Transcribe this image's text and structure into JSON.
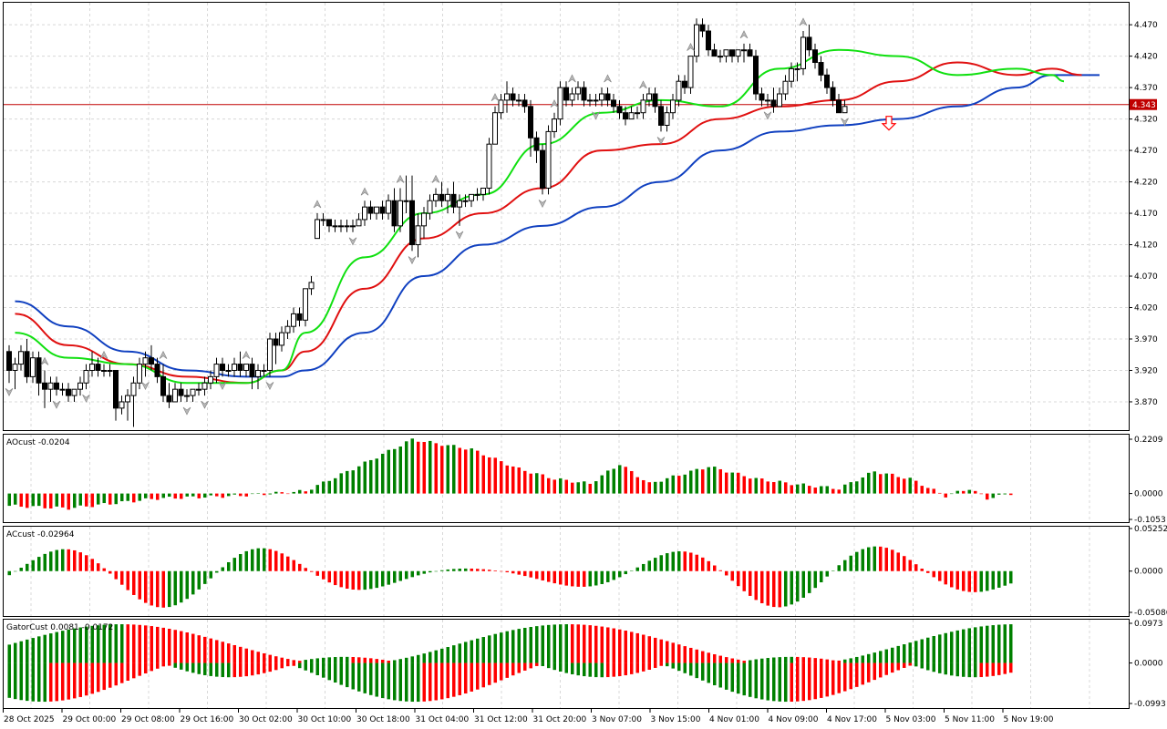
{
  "chart_data": {
    "type": "candlestick",
    "price_panel": {
      "y_ticks": [
        "4.470",
        "4.420",
        "4.370",
        "4.320",
        "4.270",
        "4.220",
        "4.170",
        "4.120",
        "4.070",
        "4.020",
        "3.970",
        "3.920",
        "3.870"
      ],
      "ylim": [
        3.825,
        4.505
      ],
      "current_price": "4.343",
      "candles": [
        [
          3.95,
          3.96,
          3.9,
          3.92
        ],
        [
          3.92,
          3.94,
          3.89,
          3.93
        ],
        [
          3.93,
          3.96,
          3.92,
          3.95
        ],
        [
          3.95,
          3.97,
          3.9,
          3.91
        ],
        [
          3.91,
          3.95,
          3.9,
          3.94
        ],
        [
          3.94,
          3.95,
          3.88,
          3.9
        ],
        [
          3.9,
          3.92,
          3.86,
          3.89
        ],
        [
          3.89,
          3.91,
          3.87,
          3.9
        ],
        [
          3.9,
          3.91,
          3.88,
          3.89
        ],
        [
          3.89,
          3.9,
          3.88,
          3.89
        ],
        [
          3.89,
          3.9,
          3.87,
          3.88
        ],
        [
          3.88,
          3.89,
          3.87,
          3.89
        ],
        [
          3.89,
          3.91,
          3.88,
          3.9
        ],
        [
          3.9,
          3.93,
          3.89,
          3.92
        ],
        [
          3.92,
          3.95,
          3.91,
          3.93
        ],
        [
          3.93,
          3.94,
          3.91,
          3.92
        ],
        [
          3.92,
          3.93,
          3.91,
          3.92
        ],
        [
          3.92,
          3.93,
          3.91,
          3.92
        ],
        [
          3.92,
          3.92,
          3.84,
          3.86
        ],
        [
          3.86,
          3.88,
          3.85,
          3.87
        ],
        [
          3.87,
          3.89,
          3.84,
          3.88
        ],
        [
          3.88,
          3.91,
          3.83,
          3.9
        ],
        [
          3.9,
          3.94,
          3.89,
          3.93
        ],
        [
          3.93,
          3.95,
          3.91,
          3.94
        ],
        [
          3.94,
          3.96,
          3.92,
          3.93
        ],
        [
          3.93,
          3.94,
          3.9,
          3.91
        ],
        [
          3.91,
          3.93,
          3.87,
          3.88
        ],
        [
          3.88,
          3.9,
          3.86,
          3.87
        ],
        [
          3.87,
          3.9,
          3.87,
          3.89
        ],
        [
          3.89,
          3.9,
          3.87,
          3.88
        ],
        [
          3.88,
          3.89,
          3.87,
          3.88
        ],
        [
          3.88,
          3.89,
          3.87,
          3.89
        ],
        [
          3.89,
          3.9,
          3.88,
          3.89
        ],
        [
          3.89,
          3.91,
          3.88,
          3.9
        ],
        [
          3.9,
          3.92,
          3.89,
          3.91
        ],
        [
          3.91,
          3.94,
          3.9,
          3.93
        ],
        [
          3.93,
          3.94,
          3.91,
          3.92
        ],
        [
          3.92,
          3.93,
          3.91,
          3.92
        ],
        [
          3.92,
          3.94,
          3.91,
          3.93
        ],
        [
          3.93,
          3.95,
          3.91,
          3.92
        ],
        [
          3.92,
          3.93,
          3.91,
          3.93
        ],
        [
          3.93,
          3.94,
          3.89,
          3.91
        ],
        [
          3.91,
          3.93,
          3.89,
          3.92
        ],
        [
          3.92,
          3.93,
          3.91,
          3.92
        ],
        [
          3.92,
          3.98,
          3.91,
          3.97
        ],
        [
          3.97,
          3.98,
          3.93,
          3.96
        ],
        [
          3.96,
          3.99,
          3.95,
          3.98
        ],
        [
          3.98,
          4.0,
          3.97,
          3.99
        ],
        [
          3.99,
          4.02,
          3.98,
          4.01
        ],
        [
          4.01,
          4.02,
          3.99,
          4.0
        ],
        [
          4.0,
          4.05,
          3.99,
          4.05
        ],
        [
          4.05,
          4.07,
          4.04,
          4.06
        ],
        [
          4.13,
          4.17,
          4.13,
          4.16
        ],
        [
          4.16,
          4.17,
          4.15,
          4.16
        ],
        [
          4.16,
          4.16,
          4.14,
          4.15
        ],
        [
          4.15,
          4.16,
          4.14,
          4.15
        ],
        [
          4.15,
          4.16,
          4.14,
          4.15
        ],
        [
          4.15,
          4.16,
          4.14,
          4.15
        ],
        [
          4.15,
          4.16,
          4.14,
          4.15
        ],
        [
          4.15,
          4.17,
          4.15,
          4.16
        ],
        [
          4.16,
          4.19,
          4.15,
          4.18
        ],
        [
          4.18,
          4.19,
          4.16,
          4.17
        ],
        [
          4.17,
          4.18,
          4.16,
          4.18
        ],
        [
          4.18,
          4.19,
          4.16,
          4.17
        ],
        [
          4.17,
          4.2,
          4.16,
          4.19
        ],
        [
          4.19,
          4.21,
          4.14,
          4.15
        ],
        [
          4.15,
          4.21,
          4.14,
          4.19
        ],
        [
          4.19,
          4.23,
          4.17,
          4.19
        ],
        [
          4.19,
          4.23,
          4.11,
          4.12
        ],
        [
          4.12,
          4.17,
          4.1,
          4.15
        ],
        [
          4.15,
          4.18,
          4.13,
          4.17
        ],
        [
          4.17,
          4.2,
          4.16,
          4.19
        ],
        [
          4.19,
          4.21,
          4.18,
          4.2
        ],
        [
          4.2,
          4.22,
          4.18,
          4.19
        ],
        [
          4.19,
          4.21,
          4.17,
          4.2
        ],
        [
          4.2,
          4.22,
          4.17,
          4.18
        ],
        [
          4.18,
          4.2,
          4.15,
          4.19
        ],
        [
          4.19,
          4.2,
          4.18,
          4.19
        ],
        [
          4.19,
          4.2,
          4.18,
          4.2
        ],
        [
          4.2,
          4.21,
          4.19,
          4.2
        ],
        [
          4.2,
          4.21,
          4.19,
          4.21
        ],
        [
          4.21,
          4.29,
          4.2,
          4.28
        ],
        [
          4.28,
          4.34,
          4.28,
          4.33
        ],
        [
          4.33,
          4.36,
          4.32,
          4.35
        ],
        [
          4.35,
          4.38,
          4.33,
          4.36
        ],
        [
          4.36,
          4.37,
          4.34,
          4.35
        ],
        [
          4.35,
          4.36,
          4.34,
          4.35
        ],
        [
          4.35,
          4.36,
          4.33,
          4.34
        ],
        [
          4.34,
          4.35,
          4.26,
          4.29
        ],
        [
          4.29,
          4.3,
          4.25,
          4.27
        ],
        [
          4.27,
          4.28,
          4.2,
          4.21
        ],
        [
          4.21,
          4.31,
          4.2,
          4.3
        ],
        [
          4.3,
          4.33,
          4.29,
          4.32
        ],
        [
          4.32,
          4.38,
          4.31,
          4.37
        ],
        [
          4.37,
          4.38,
          4.34,
          4.35
        ],
        [
          4.35,
          4.37,
          4.34,
          4.36
        ],
        [
          4.36,
          4.38,
          4.35,
          4.37
        ],
        [
          4.37,
          4.38,
          4.34,
          4.35
        ],
        [
          4.35,
          4.36,
          4.34,
          4.35
        ],
        [
          4.35,
          4.36,
          4.34,
          4.35
        ],
        [
          4.35,
          4.37,
          4.34,
          4.36
        ],
        [
          4.36,
          4.37,
          4.34,
          4.35
        ],
        [
          4.35,
          4.36,
          4.33,
          4.34
        ],
        [
          4.34,
          4.35,
          4.32,
          4.33
        ],
        [
          4.33,
          4.34,
          4.31,
          4.32
        ],
        [
          4.32,
          4.34,
          4.32,
          4.33
        ],
        [
          4.33,
          4.34,
          4.32,
          4.33
        ],
        [
          4.33,
          4.36,
          4.32,
          4.35
        ],
        [
          4.35,
          4.37,
          4.34,
          4.36
        ],
        [
          4.36,
          4.37,
          4.33,
          4.34
        ],
        [
          4.34,
          4.35,
          4.3,
          4.31
        ],
        [
          4.31,
          4.34,
          4.3,
          4.33
        ],
        [
          4.33,
          4.36,
          4.32,
          4.35
        ],
        [
          4.35,
          4.39,
          4.34,
          4.38
        ],
        [
          4.38,
          4.39,
          4.36,
          4.37
        ],
        [
          4.37,
          4.42,
          4.36,
          4.42
        ],
        [
          4.42,
          4.48,
          4.41,
          4.47
        ],
        [
          4.47,
          4.48,
          4.45,
          4.46
        ],
        [
          4.46,
          4.47,
          4.42,
          4.43
        ],
        [
          4.43,
          4.44,
          4.42,
          4.42
        ],
        [
          4.42,
          4.43,
          4.41,
          4.42
        ],
        [
          4.42,
          4.43,
          4.41,
          4.43
        ],
        [
          4.43,
          4.43,
          4.41,
          4.42
        ],
        [
          4.42,
          4.43,
          4.41,
          4.43
        ],
        [
          4.43,
          4.44,
          4.41,
          4.43
        ],
        [
          4.43,
          4.44,
          4.42,
          4.42
        ],
        [
          4.42,
          4.43,
          4.35,
          4.36
        ],
        [
          4.36,
          4.37,
          4.34,
          4.35
        ],
        [
          4.35,
          4.36,
          4.34,
          4.35
        ],
        [
          4.35,
          4.37,
          4.33,
          4.34
        ],
        [
          4.34,
          4.37,
          4.34,
          4.36
        ],
        [
          4.36,
          4.39,
          4.35,
          4.38
        ],
        [
          4.38,
          4.41,
          4.37,
          4.4
        ],
        [
          4.4,
          4.41,
          4.38,
          4.4
        ],
        [
          4.4,
          4.46,
          4.39,
          4.45
        ],
        [
          4.45,
          4.47,
          4.42,
          4.43
        ],
        [
          4.43,
          4.44,
          4.4,
          4.41
        ],
        [
          4.41,
          4.42,
          4.38,
          4.39
        ],
        [
          4.39,
          4.4,
          4.36,
          4.37
        ],
        [
          4.37,
          4.38,
          4.34,
          4.35
        ],
        [
          4.35,
          4.36,
          4.33,
          4.33
        ],
        [
          4.33,
          4.35,
          4.33,
          4.34
        ]
      ],
      "alligator": {
        "jaw_blue": [
          [
            1,
            4.03
          ],
          [
            10,
            3.99
          ],
          [
            20,
            3.95
          ],
          [
            30,
            3.92
          ],
          [
            40,
            3.91
          ],
          [
            46,
            3.91
          ],
          [
            50,
            3.92
          ],
          [
            60,
            3.98
          ],
          [
            70,
            4.07
          ],
          [
            80,
            4.12
          ],
          [
            90,
            4.15
          ],
          [
            100,
            4.18
          ],
          [
            110,
            4.22
          ],
          [
            120,
            4.27
          ],
          [
            130,
            4.3
          ],
          [
            140,
            4.31
          ],
          [
            150,
            4.32
          ],
          [
            160,
            4.34
          ],
          [
            170,
            4.37
          ],
          [
            176,
            4.39
          ],
          [
            184,
            4.39
          ]
        ],
        "teeth_red": [
          [
            1,
            4.01
          ],
          [
            10,
            3.96
          ],
          [
            20,
            3.93
          ],
          [
            30,
            3.91
          ],
          [
            40,
            3.9
          ],
          [
            46,
            3.92
          ],
          [
            50,
            3.95
          ],
          [
            60,
            4.05
          ],
          [
            70,
            4.13
          ],
          [
            80,
            4.17
          ],
          [
            90,
            4.21
          ],
          [
            100,
            4.27
          ],
          [
            110,
            4.28
          ],
          [
            120,
            4.32
          ],
          [
            130,
            4.34
          ],
          [
            140,
            4.35
          ],
          [
            150,
            4.38
          ],
          [
            160,
            4.41
          ],
          [
            170,
            4.39
          ],
          [
            176,
            4.4
          ],
          [
            181,
            4.39
          ]
        ],
        "lips_green": [
          [
            1,
            3.98
          ],
          [
            10,
            3.94
          ],
          [
            20,
            3.93
          ],
          [
            30,
            3.9
          ],
          [
            40,
            3.9
          ],
          [
            46,
            3.92
          ],
          [
            50,
            3.98
          ],
          [
            60,
            4.1
          ],
          [
            70,
            4.17
          ],
          [
            80,
            4.2
          ],
          [
            90,
            4.28
          ],
          [
            100,
            4.33
          ],
          [
            110,
            4.35
          ],
          [
            120,
            4.34
          ],
          [
            130,
            4.4
          ],
          [
            140,
            4.43
          ],
          [
            150,
            4.42
          ],
          [
            160,
            4.39
          ],
          [
            170,
            4.4
          ],
          [
            176,
            4.39
          ],
          [
            178,
            4.38
          ]
        ]
      },
      "fractals_up": [
        6,
        16,
        26,
        40,
        52,
        60,
        66,
        72,
        82,
        92,
        95,
        101,
        107,
        115,
        124,
        134,
        145
      ],
      "fractals_down": [
        0,
        8,
        13,
        23,
        30,
        33,
        36,
        44,
        58,
        68,
        76,
        90,
        99,
        110,
        128,
        141
      ],
      "sell_arrow_bar": 146
    },
    "ao_panel": {
      "label": "AOcust -0.0204",
      "y_ticks": [
        "0.2209",
        "0.0000",
        "-0.1053"
      ],
      "ylim": [
        -0.1053,
        0.2209
      ]
    },
    "ac_panel": {
      "label": "ACcust -0.02964",
      "y_ticks": [
        "0.05252",
        "0.0000",
        "-0.05086"
      ],
      "ylim": [
        -0.05086,
        0.05252
      ]
    },
    "gator_panel": {
      "label": "GatorCust 0.0081 -0.0172",
      "y_ticks": [
        "0.0973",
        "0.0000",
        "-0.0993"
      ],
      "ylim": [
        -0.0993,
        0.0973
      ]
    },
    "x_labels": [
      "28 Oct 2025",
      "29 Oct 00:00",
      "29 Oct 08:00",
      "29 Oct 16:00",
      "30 Oct 02:00",
      "30 Oct 10:00",
      "30 Oct 18:00",
      "31 Oct 04:00",
      "31 Oct 12:00",
      "31 Oct 20:00",
      "3 Nov 07:00",
      "3 Nov 15:00",
      "4 Nov 01:00",
      "4 Nov 09:00",
      "4 Nov 17:00",
      "5 Nov 03:00",
      "5 Nov 11:00",
      "5 Nov 19:00"
    ],
    "colors": {
      "jaw": "#1040c0",
      "teeth": "#e01010",
      "lips": "#10e010",
      "up": "#008000",
      "down": "#ff0000",
      "price_line": "#c00000",
      "grid": "#d8d8d8",
      "text": "#000000"
    }
  }
}
